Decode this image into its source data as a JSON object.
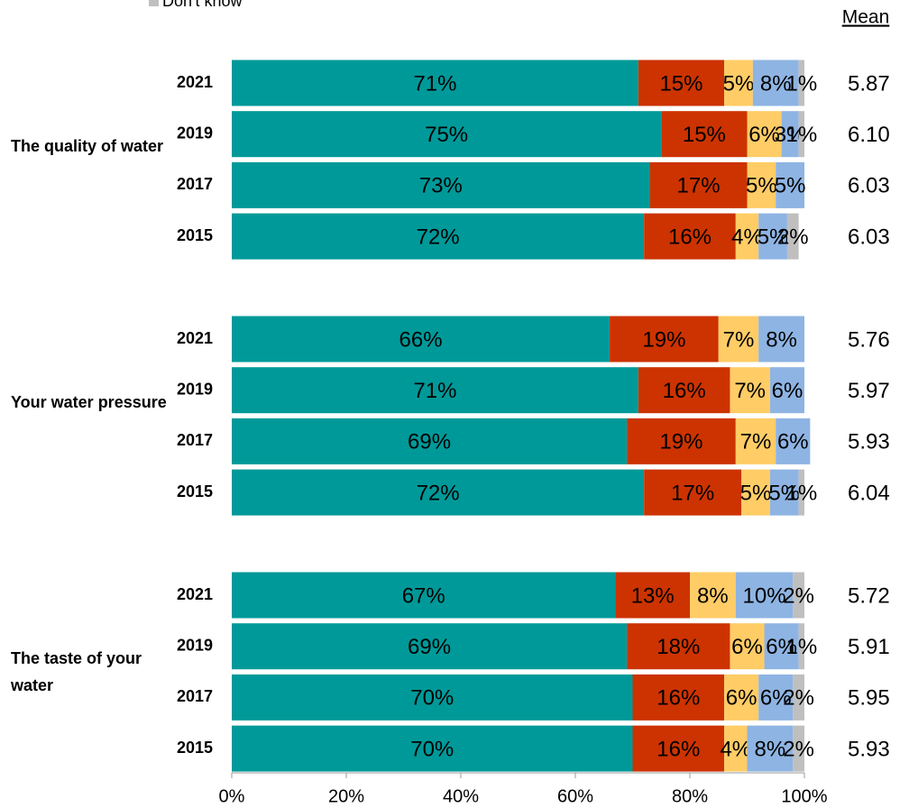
{
  "chart_data": {
    "type": "bar",
    "orientation": "horizontal",
    "stacked": true,
    "mean_title": "Mean",
    "series": [
      {
        "color": "#009999"
      },
      {
        "color": "#cc3300"
      },
      {
        "color": "#ffcc66"
      },
      {
        "color": "#8eb4e3"
      },
      {
        "name": "Don't know",
        "color": "#bfbfbf"
      }
    ],
    "groups": [
      {
        "name": "The quality of water",
        "rows": [
          {
            "category": "2021",
            "values": [
              71,
              15,
              5,
              8,
              1
            ],
            "value_labels": [
              "71%",
              "15%",
              "5%",
              "8%",
              "1%"
            ],
            "mean": 5.87,
            "mean_label": "5.87"
          },
          {
            "category": "2019",
            "values": [
              75,
              15,
              6,
              3,
              1
            ],
            "value_labels": [
              "75%",
              "15%",
              "6%",
              "3%",
              "1%"
            ],
            "mean": 6.1,
            "mean_label": "6.10"
          },
          {
            "category": "2017",
            "values": [
              73,
              17,
              5,
              5,
              null
            ],
            "value_labels": [
              "73%",
              "17%",
              "5%",
              "5%",
              null
            ],
            "mean": 6.03,
            "mean_label": "6.03"
          },
          {
            "category": "2015",
            "values": [
              72,
              16,
              4,
              5,
              2
            ],
            "value_labels": [
              "72%",
              "16%",
              "4%",
              "5%",
              "2%"
            ],
            "mean": 6.03,
            "mean_label": "6.03"
          }
        ]
      },
      {
        "name": "Your water pressure",
        "rows": [
          {
            "category": "2021",
            "values": [
              66,
              19,
              7,
              8,
              null
            ],
            "value_labels": [
              "66%",
              "19%",
              "7%",
              "8%",
              null
            ],
            "mean": 5.76,
            "mean_label": "5.76"
          },
          {
            "category": "2019",
            "values": [
              71,
              16,
              7,
              6,
              null
            ],
            "value_labels": [
              "71%",
              "16%",
              "7%",
              "6%",
              null
            ],
            "mean": 5.97,
            "mean_label": "5.97"
          },
          {
            "category": "2017",
            "values": [
              69,
              19,
              7,
              6,
              null
            ],
            "value_labels": [
              "69%",
              "19%",
              "7%",
              "6%",
              null
            ],
            "mean": 5.93,
            "mean_label": "5.93"
          },
          {
            "category": "2015",
            "values": [
              72,
              17,
              5,
              5,
              1
            ],
            "value_labels": [
              "72%",
              "17%",
              "5%",
              "5%",
              "1%"
            ],
            "mean": 6.04,
            "mean_label": "6.04"
          }
        ]
      },
      {
        "name": "The taste of your water",
        "rows": [
          {
            "category": "2021",
            "values": [
              67,
              13,
              8,
              10,
              2
            ],
            "value_labels": [
              "67%",
              "13%",
              "8%",
              "10%",
              "2%"
            ],
            "mean": 5.72,
            "mean_label": "5.72"
          },
          {
            "category": "2019",
            "values": [
              69,
              18,
              6,
              6,
              1
            ],
            "value_labels": [
              "69%",
              "18%",
              "6%",
              "6%",
              "1%"
            ],
            "mean": 5.91,
            "mean_label": "5.91"
          },
          {
            "category": "2017",
            "values": [
              70,
              16,
              6,
              6,
              2
            ],
            "value_labels": [
              "70%",
              "16%",
              "6%",
              "6%",
              "2%"
            ],
            "mean": 5.95,
            "mean_label": "5.95"
          },
          {
            "category": "2015",
            "values": [
              70,
              16,
              4,
              8,
              2
            ],
            "value_labels": [
              "70%",
              "16%",
              "4%",
              "8%",
              "2%"
            ],
            "mean": 5.93,
            "mean_label": "5.93"
          }
        ]
      }
    ],
    "xlim": [
      0,
      100
    ],
    "xticks": [
      {
        "value": 0,
        "label": "0%"
      },
      {
        "value": 20,
        "label": "20%"
      },
      {
        "value": 40,
        "label": "40%"
      },
      {
        "value": 60,
        "label": "60%"
      },
      {
        "value": 80,
        "label": "80%"
      },
      {
        "value": 100,
        "label": "100%"
      }
    ]
  }
}
